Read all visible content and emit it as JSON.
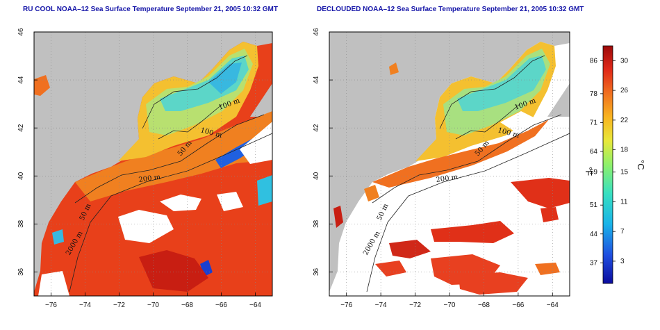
{
  "maps": [
    {
      "id": "left",
      "title": "RU COOL NOAA–12 Sea Surface Temperature September 21, 2005 10:32 GMT",
      "cloud_masked": false
    },
    {
      "id": "right",
      "title": "DECLOUDED NOAA–12 Sea Surface Temperature September 21, 2005 10:32 GMT",
      "cloud_masked": true
    }
  ],
  "axes": {
    "lon_range": [
      -77,
      -63
    ],
    "lat_range": [
      35,
      46
    ],
    "lon_ticks": [
      "−76",
      "−74",
      "−72",
      "−70",
      "−68",
      "−66",
      "−64"
    ],
    "lon_tick_values": [
      -76,
      -74,
      -72,
      -70,
      -68,
      -66,
      -64
    ],
    "lat_ticks": [
      "36",
      "38",
      "40",
      "42",
      "44",
      "46"
    ],
    "lat_tick_values": [
      36,
      38,
      40,
      42,
      44,
      46
    ],
    "grid": "dotted"
  },
  "contour_labels": [
    "100 m",
    "100 m",
    "50 m",
    "200 m",
    "50 m",
    "2000 m"
  ],
  "colorbar": {
    "fahrenheit_ticks": [
      "86",
      "78",
      "71",
      "64",
      "59",
      "51",
      "44",
      "37"
    ],
    "fahrenheit_values": [
      86,
      78,
      71,
      64,
      59,
      51,
      44,
      37
    ],
    "celsius_ticks": [
      "30",
      "26",
      "22",
      "18",
      "15",
      "11",
      "7",
      "3"
    ],
    "celsius_values": [
      30,
      26,
      22,
      18,
      15,
      11,
      7,
      3
    ],
    "unit_f": "°F",
    "unit_c": "°C",
    "colors": [
      "#0b0c9e",
      "#1f4fe0",
      "#19b3e8",
      "#38e0c0",
      "#8ef06a",
      "#e8e83a",
      "#f8b420",
      "#f07020",
      "#e02818",
      "#9c0a0a"
    ]
  },
  "colors": {
    "land": "#c0c0c0",
    "cloud": "#ffffff",
    "frame": "#000000"
  }
}
